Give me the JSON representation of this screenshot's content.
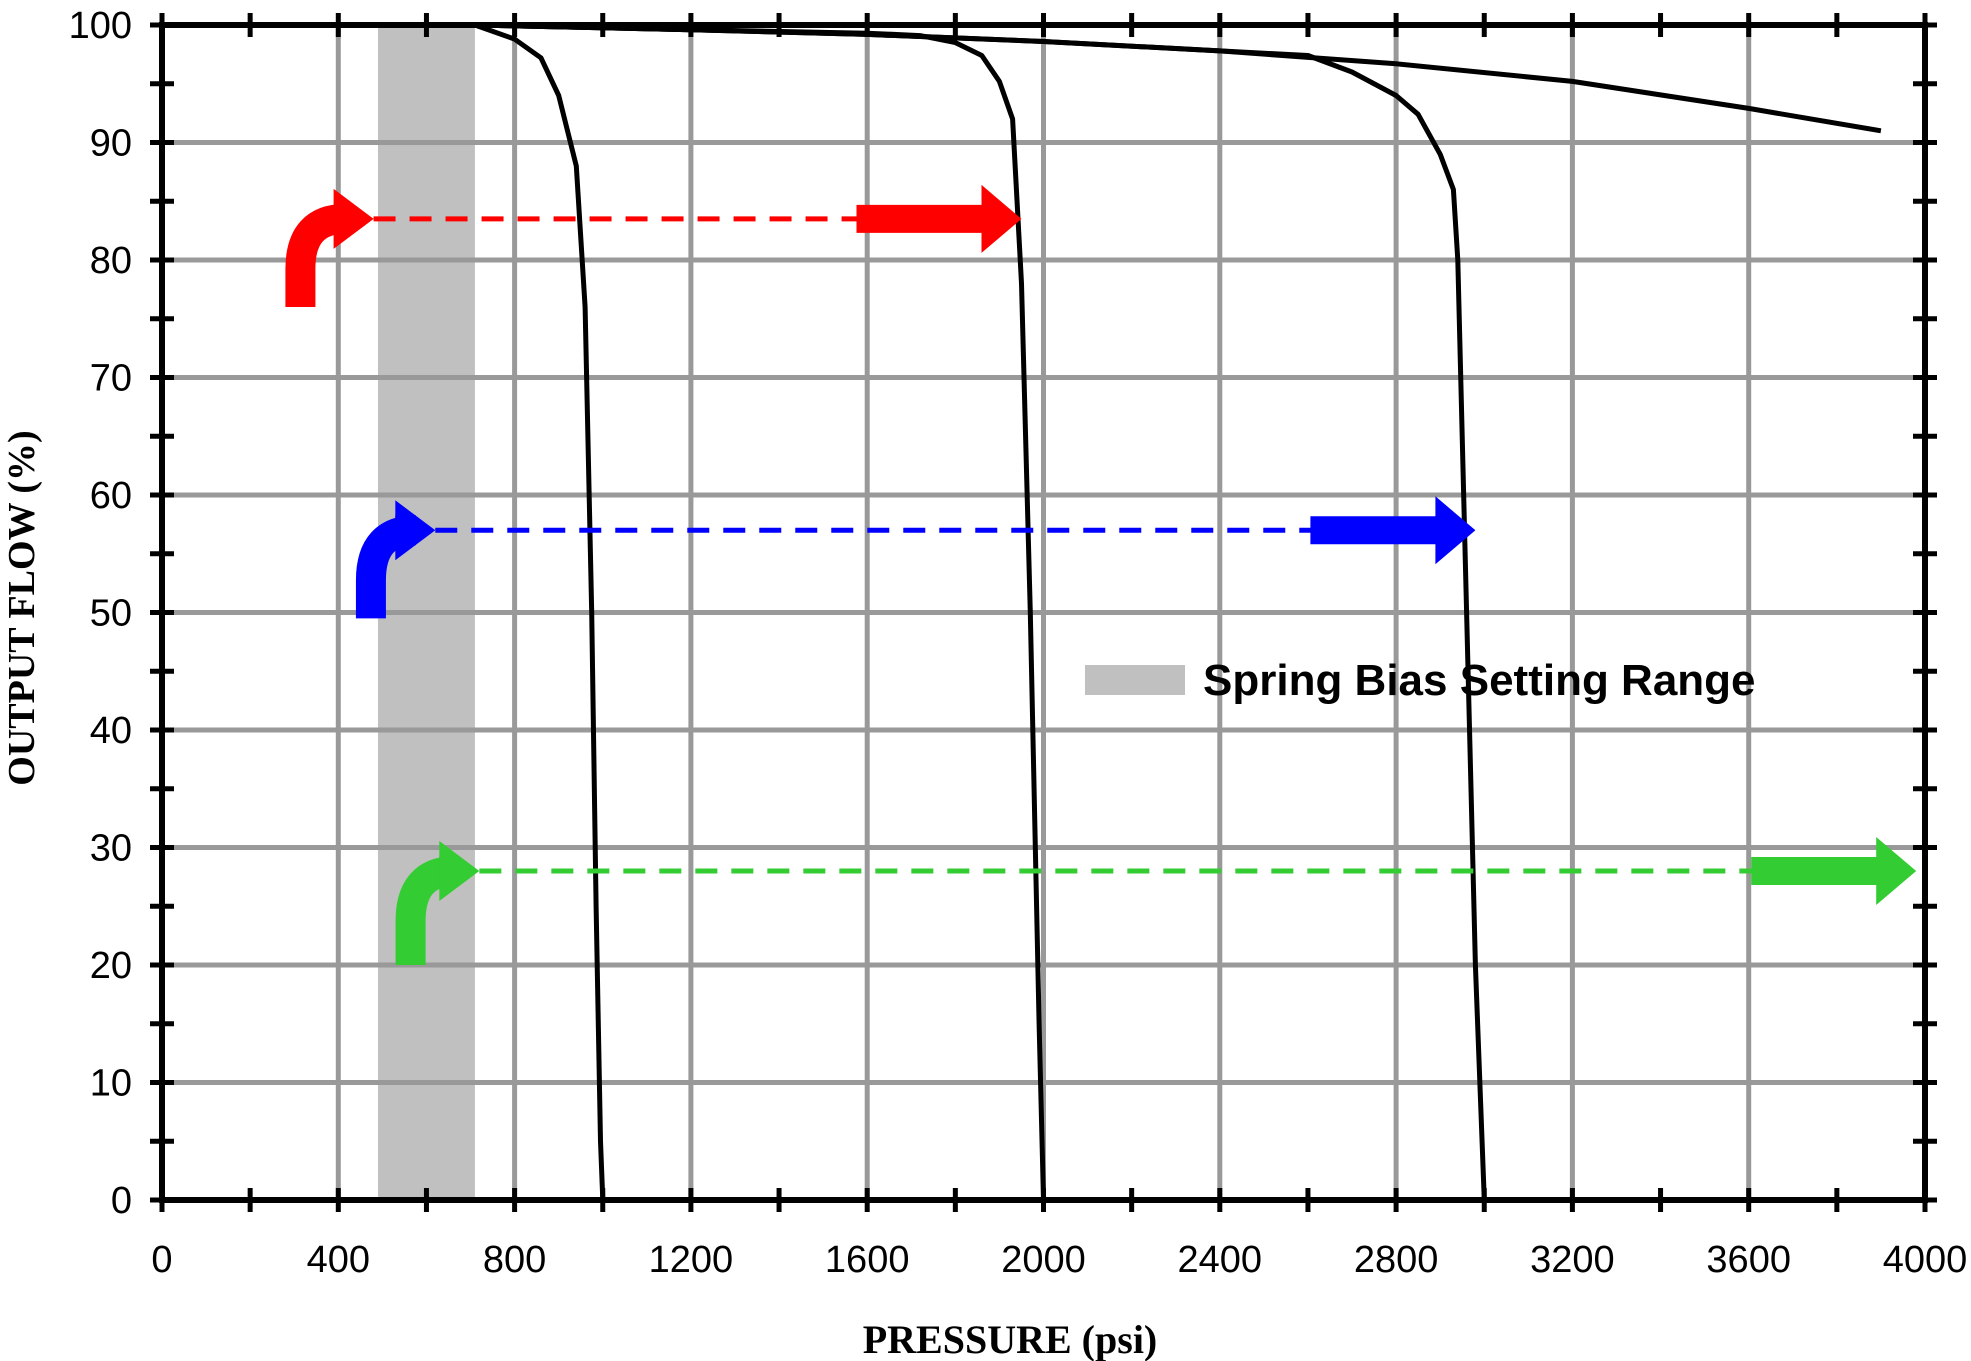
{
  "chart_data": {
    "type": "line",
    "title": "",
    "xlabel": "PRESSURE (psi)",
    "ylabel": "OUTPUT FLOW (%)",
    "xlim": [
      0,
      4000
    ],
    "ylim": [
      0,
      100
    ],
    "x_ticks": [
      0,
      400,
      800,
      1200,
      1600,
      2000,
      2400,
      2800,
      3200,
      3600,
      4000
    ],
    "y_ticks": [
      0,
      10,
      20,
      30,
      40,
      50,
      60,
      70,
      80,
      90,
      100
    ],
    "x_tick_labels": [
      "0",
      "400",
      "800",
      "1200",
      "1600",
      "2000",
      "2400",
      "2800",
      "3200",
      "3600",
      "4000"
    ],
    "y_tick_labels": [
      "0",
      "10",
      "20",
      "30",
      "40",
      "50",
      "60",
      "70",
      "80",
      "90",
      "100"
    ],
    "grid": true,
    "colors": {
      "curve": "#000000",
      "grid": "#999999",
      "band": "#c0c0c0",
      "red": "#ff0000",
      "blue": "#0000ff",
      "green": "#33cc33"
    },
    "band": {
      "x_start": 490,
      "x_end": 710,
      "label": "Spring Bias Setting Range"
    },
    "legend": {
      "position": "center-right",
      "entries": [
        "Spring Bias Setting Range"
      ]
    },
    "series": [
      {
        "x": [
          710,
          800,
          860,
          900,
          940,
          960,
          975,
          985,
          995,
          1000
        ],
        "y": [
          100,
          98.8,
          97.2,
          94,
          88,
          76,
          50,
          25,
          5,
          0
        ]
      },
      {
        "x": [
          710,
          1200,
          1600,
          1720,
          1800,
          1860,
          1900,
          1930,
          1950,
          1970,
          1990,
          2000
        ],
        "y": [
          100,
          99.6,
          99.3,
          99.1,
          98.5,
          97.4,
          95.2,
          92,
          78,
          50,
          15,
          0
        ]
      },
      {
        "x": [
          710,
          1200,
          1600,
          2000,
          2400,
          2600,
          2700,
          2800,
          2850,
          2900,
          2930,
          2940,
          2960,
          2980,
          3000
        ],
        "y": [
          100,
          99.6,
          99.2,
          98.6,
          97.8,
          97.4,
          96,
          94,
          92.4,
          89,
          86,
          80,
          50,
          20,
          0
        ]
      },
      {
        "x": [
          710,
          1200,
          1600,
          2000,
          2400,
          2800,
          3200,
          3600,
          3900
        ],
        "y": [
          100,
          99.6,
          99.2,
          98.6,
          97.8,
          96.7,
          95.2,
          92.9,
          91
        ]
      }
    ],
    "flow_arrows": [
      {
        "color": "red",
        "y": 83.5,
        "x_start": 480,
        "x_end": 1950,
        "start_x": 280,
        "start_y": 76
      },
      {
        "color": "blue",
        "y": 57,
        "x_start": 620,
        "x_end": 2980,
        "start_x": 440,
        "start_y": 49.5
      },
      {
        "color": "green",
        "y": 28,
        "x_start": 720,
        "x_end": 3980,
        "start_x": 530,
        "start_y": 20
      }
    ]
  }
}
